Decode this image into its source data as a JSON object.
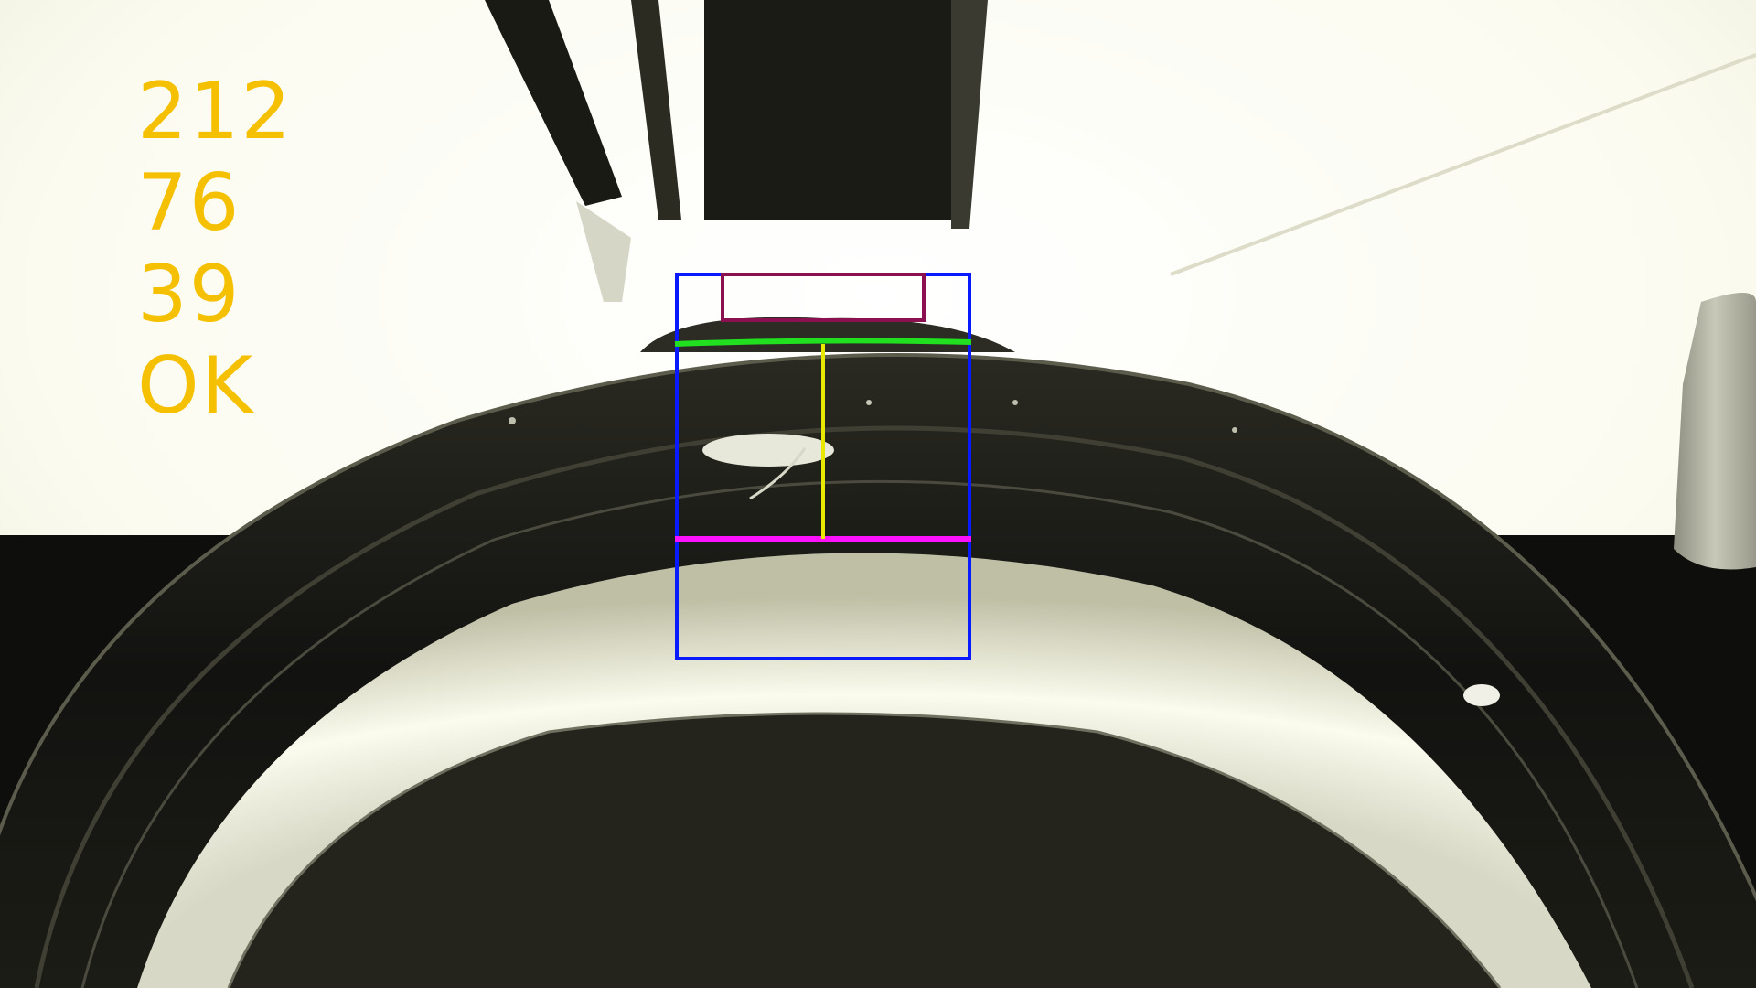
{
  "readout": {
    "values": [
      "212",
      "76",
      "39"
    ],
    "status": "OK",
    "color": "#f5c000"
  },
  "overlay": {
    "search_box_color": "#0a1aff",
    "reference_box_color": "#8a1050",
    "upper_edge_color": "#20e020",
    "lower_edge_color": "#ff10ff",
    "measure_line_color": "#e8e800"
  }
}
